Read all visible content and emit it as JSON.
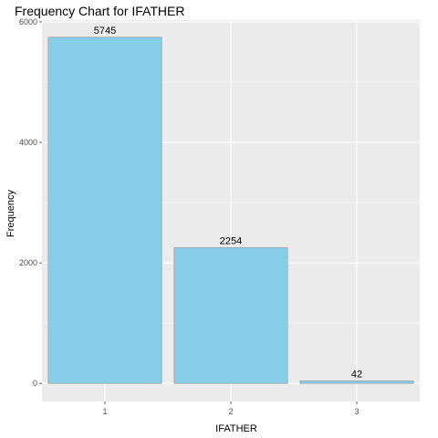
{
  "chart_data": {
    "type": "bar",
    "title": "Frequency Chart for IFATHER",
    "xlabel": "IFATHER",
    "ylabel": "Frequency",
    "categories": [
      "1",
      "2",
      "3"
    ],
    "values": [
      5745,
      2254,
      42
    ],
    "data_labels": [
      "5745",
      "2254",
      "42"
    ],
    "ylim": [
      -300,
      6030
    ],
    "yticks": [
      0,
      2000,
      4000,
      6000
    ],
    "ytick_labels": [
      "0",
      "2000",
      "4000",
      "6000"
    ],
    "ygrid_minor": [
      1000,
      3000,
      5000
    ],
    "grid": true,
    "legend": "none",
    "colors": {
      "panel_background": "#ebebeb",
      "grid_major": "#ffffff",
      "grid_minor": "#f5f5f5",
      "bar_fill": "#87ceeb",
      "bar_outline": "#9e9e9e",
      "tick": "#333333"
    }
  }
}
